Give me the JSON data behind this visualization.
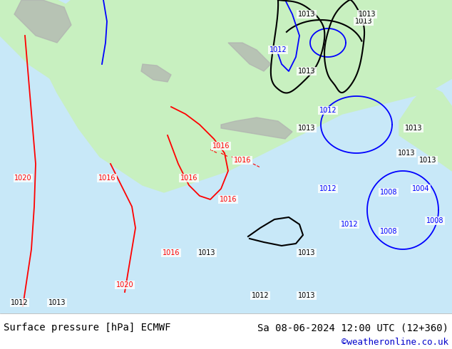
{
  "title_left": "Surface pressure [hPa] ECMWF",
  "title_right": "Sa 08-06-2024 12:00 UTC (12+360)",
  "credit": "©weatheronline.co.uk",
  "bg_color": "#ffffff",
  "footer_bg": "#ffffff",
  "footer_text_color": "#000000",
  "credit_color": "#0000cc",
  "map_bg_sea": "#c8e8ff",
  "map_bg_land": "#c8f0c8",
  "figsize": [
    6.34,
    4.9
  ],
  "dpi": 100,
  "footer_fontsize": 10,
  "credit_fontsize": 9,
  "contour_labels_fontsize": 7,
  "image_path": null,
  "description": "Atmospheric pressure map ECMWF Europe Saturday 08.06.2024 12 UTC"
}
